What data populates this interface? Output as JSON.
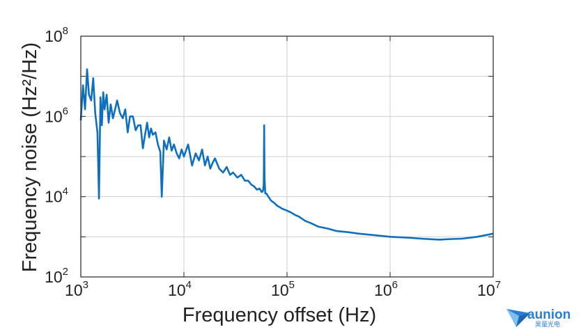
{
  "chart_data": {
    "type": "line",
    "xscale": "log",
    "yscale": "log",
    "xlim": [
      1000,
      10000000
    ],
    "ylim": [
      100,
      100000000
    ],
    "grid": true,
    "xlabel": "Frequency offset (Hz)",
    "ylabel": "Frequency noise (Hz²/Hz)",
    "x_ticks": [
      {
        "base": "10",
        "exp": "3",
        "value": 1000
      },
      {
        "base": "10",
        "exp": "4",
        "value": 10000
      },
      {
        "base": "10",
        "exp": "5",
        "value": 100000
      },
      {
        "base": "10",
        "exp": "6",
        "value": 1000000
      },
      {
        "base": "10",
        "exp": "7",
        "value": 10000000
      }
    ],
    "y_ticks": [
      {
        "base": "10",
        "exp": "2",
        "value": 100
      },
      {
        "base": "10",
        "exp": "4",
        "value": 10000
      },
      {
        "base": "10",
        "exp": "6",
        "value": 1000000
      },
      {
        "base": "10",
        "exp": "8",
        "value": 100000000
      }
    ],
    "series": [
      {
        "color": "#0e6fbf",
        "x": [
          1000,
          1050,
          1100,
          1150,
          1200,
          1260,
          1320,
          1380,
          1450,
          1500,
          1550,
          1600,
          1650,
          1700,
          1780,
          1860,
          1950,
          2050,
          2150,
          2250,
          2400,
          2550,
          2700,
          2850,
          3000,
          3200,
          3400,
          3600,
          3800,
          4000,
          4200,
          4400,
          4600,
          4800,
          5000,
          5300,
          5600,
          5900,
          6100,
          6400,
          6800,
          7200,
          7600,
          8000,
          8500,
          9000,
          9500,
          10000,
          11000,
          12000,
          13000,
          14000,
          15000,
          16000,
          17000,
          18000,
          19000,
          20000,
          22000,
          24000,
          26000,
          28000,
          30000,
          33000,
          36000,
          39000,
          42000,
          45000,
          48000,
          51000,
          54000,
          57000,
          58500,
          59500,
          60000,
          60500,
          61500,
          63000,
          66000,
          70000,
          75000,
          80000,
          90000,
          100000,
          110000,
          120000,
          130000,
          150000,
          170000,
          200000,
          250000,
          300000,
          400000,
          500000,
          700000,
          1000000,
          1500000,
          2000000,
          3000000,
          4000000,
          5000000,
          7000000,
          10000000
        ],
        "y": [
          800000,
          6000000,
          1500000,
          15000000,
          3500000,
          2500000,
          9000000,
          1200000,
          400000,
          9000,
          3000000,
          600000,
          4000000,
          1500000,
          3500000,
          700000,
          2000000,
          900000,
          1500000,
          2500000,
          1200000,
          900000,
          1500000,
          400000,
          1000000,
          1000000,
          450000,
          600000,
          600000,
          160000,
          350000,
          700000,
          300000,
          500000,
          350000,
          400000,
          200000,
          130000,
          10000,
          250000,
          150000,
          300000,
          140000,
          200000,
          120000,
          90000,
          150000,
          100000,
          200000,
          60000,
          120000,
          80000,
          150000,
          60000,
          100000,
          50000,
          70000,
          90000,
          50000,
          40000,
          55000,
          35000,
          40000,
          30000,
          35000,
          25000,
          25000,
          20000,
          18000,
          15000,
          16000,
          13000,
          14000,
          20000,
          600000,
          30000,
          12000,
          12000,
          10000,
          8000,
          7000,
          6000,
          5000,
          4500,
          4000,
          3500,
          3200,
          2500,
          2200,
          1800,
          1600,
          1400,
          1300,
          1200,
          1100,
          1000,
          950,
          900,
          850,
          880,
          900,
          1000,
          1200
        ]
      }
    ]
  },
  "logo": {
    "name": "aunion",
    "subtitle": "昊量光电",
    "accent": "#2a7fd4",
    "icon": "paper-plane-icon"
  }
}
